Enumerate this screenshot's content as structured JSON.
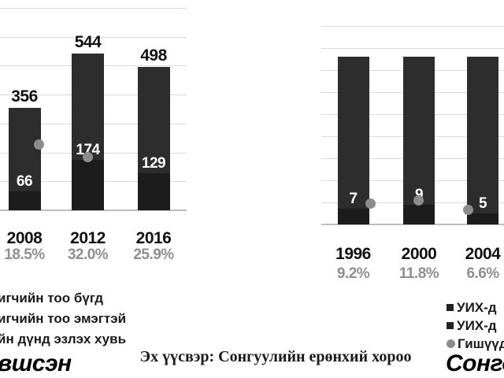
{
  "source_note": "Эх үүсвэр: Сонгуулийн ерөнхий хороо",
  "left_section_title": "вшсэн",
  "right_section_title": "Сонго",
  "legend_left": {
    "items": [
      {
        "label": "игчийн тоо бүгд"
      },
      {
        "label": "игчийн тоо эмэгтэй"
      },
      {
        "label": "йн дүнд эзлэх хувь"
      }
    ]
  },
  "legend_right": {
    "items": [
      {
        "marker": "square",
        "label": "УИХ-д"
      },
      {
        "marker": "square",
        "label": "УИХ-д"
      },
      {
        "marker": "circle",
        "label": "Гишүүд"
      }
    ]
  },
  "colors": {
    "bar_total": "#2d2d2d",
    "bar_female": "#1c1c1c",
    "dot": "#8c8c8c",
    "grid": "#d9d9d9",
    "axis": "#bdbdbd",
    "text_dark": "#111111",
    "text_gray": "#8f8f8f",
    "inner_label": "#ffffff"
  },
  "chart_data": [
    {
      "id": "nominated",
      "type": "bar",
      "categories": [
        "2008",
        "2012",
        "2016"
      ],
      "category_sub_labels": [
        "18.5%",
        "32.0%",
        "25.9%"
      ],
      "series": [
        {
          "name": "тоо бүгд",
          "type": "bar",
          "values": [
            356,
            544,
            498
          ]
        },
        {
          "name": "тоо эмэгтэй",
          "type": "bar",
          "values": [
            66,
            174,
            129
          ]
        },
        {
          "name": "эзлэх хувь",
          "type": "scatter",
          "unit": "%",
          "values": [
            18.5,
            32.0,
            25.9
          ]
        }
      ],
      "bar_top_labels": [
        "356",
        "544",
        "498"
      ],
      "bar_inner_labels": [
        "66",
        "174",
        "129"
      ],
      "ylim": [
        0,
        700
      ],
      "grid": true,
      "gridline_step": 100,
      "legend_position": "bottom-left"
    },
    {
      "id": "elected",
      "type": "bar",
      "categories": [
        "1996",
        "2000",
        "2004"
      ],
      "category_sub_labels": [
        "9.2%",
        "11.8%",
        "6.6%"
      ],
      "series": [
        {
          "name": "тоо бүгд",
          "type": "bar",
          "values": [
            76,
            76,
            76
          ]
        },
        {
          "name": "тоо эмэгтэй",
          "type": "bar",
          "values": [
            7,
            9,
            5
          ]
        },
        {
          "name": "эзлэх хувь",
          "type": "scatter",
          "unit": "%",
          "values": [
            9.2,
            11.8,
            6.6
          ]
        }
      ],
      "bar_top_labels": [
        "",
        "",
        ""
      ],
      "bar_inner_labels": [
        "7",
        "9",
        "5"
      ],
      "ylim": [
        0,
        90
      ],
      "grid": true,
      "gridline_step": 10,
      "legend_position": "bottom-right"
    }
  ]
}
